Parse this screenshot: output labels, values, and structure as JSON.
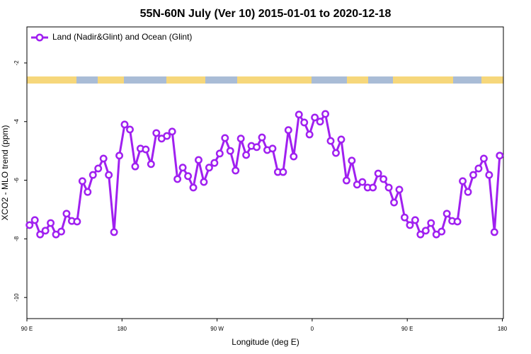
{
  "chart_data": {
    "type": "line",
    "title": "55N-60N July (Ver 10)   2015-01-01 to 2020-12-18",
    "xlabel": "Longitude (deg E)",
    "ylabel": "XCO2 - MLO trend (ppm)",
    "legend": "top-left",
    "xlim": [
      90,
      541
    ],
    "ylim": [
      -10.72,
      -0.77
    ],
    "xticks": [
      {
        "value": 90,
        "label": "90 E"
      },
      180,
      {
        "value": 270,
        "label": "90 W"
      },
      {
        "value": 360,
        "label": "0"
      },
      {
        "value": 450,
        "label": "90 E"
      },
      {
        "value": 540,
        "label": "180"
      }
    ],
    "yticks": [
      -2,
      -4,
      -6,
      -8,
      -10
    ],
    "x": [
      92.5,
      97.5,
      102.5,
      107.5,
      112.5,
      117.5,
      122.5,
      127.5,
      132.5,
      137.5,
      142.5,
      147.5,
      152.5,
      157.5,
      162.5,
      167.5,
      172.5,
      177.5,
      182.5,
      187.5,
      192.5,
      197.5,
      202.5,
      207.5,
      212.5,
      217.5,
      222.5,
      227.5,
      232.5,
      237.5,
      242.5,
      247.5,
      252.5,
      257.5,
      262.5,
      267.5,
      272.5,
      277.5,
      282.5,
      287.5,
      292.5,
      297.5,
      302.5,
      307.5,
      312.5,
      317.5,
      322.5,
      327.5,
      332.5,
      337.5,
      342.5,
      347.5,
      352.5,
      357.5,
      362.5,
      367.5,
      372.5,
      377.5,
      382.5,
      387.5,
      392.5,
      397.5,
      402.5,
      407.5,
      412.5,
      417.5,
      422.5,
      427.5,
      432.5,
      437.5,
      442.5,
      447.5,
      452.5,
      457.5,
      462.5,
      467.5,
      472.5,
      477.5,
      482.5,
      487.5,
      492.5,
      497.5,
      502.5,
      507.5,
      512.5,
      517.5,
      522.5,
      527.5,
      532.5,
      537.5
    ],
    "series": [
      {
        "name": "Land (Nadir&Glint) and Ocean (Glint)",
        "color": "#a020f0",
        "values": [
          -7.53,
          -7.36,
          -7.85,
          -7.72,
          -7.46,
          -7.85,
          -7.75,
          -7.14,
          -7.39,
          -7.41,
          -6.03,
          -6.4,
          -5.82,
          -5.6,
          -5.26,
          -5.82,
          -7.77,
          -5.16,
          -4.1,
          -4.27,
          -5.53,
          -4.92,
          -4.95,
          -5.45,
          -4.39,
          -4.58,
          -4.49,
          -4.34,
          -5.96,
          -5.57,
          -5.86,
          -6.25,
          -5.31,
          -6.06,
          -5.57,
          -5.41,
          -5.09,
          -4.56,
          -5.0,
          -5.67,
          -4.58,
          -5.14,
          -4.83,
          -4.87,
          -4.54,
          -4.97,
          -4.92,
          -5.72,
          -5.72,
          -4.29,
          -5.19,
          -3.76,
          -4.03,
          -4.44,
          -3.86,
          -4.0,
          -3.74,
          -4.66,
          -5.07,
          -4.61,
          -6.01,
          -5.33,
          -6.15,
          -6.06,
          -6.25,
          -6.25,
          -5.77,
          -5.96,
          -6.25,
          -6.76,
          -6.32,
          -7.27,
          -7.53,
          -7.36,
          -7.85,
          -7.72,
          -7.46,
          -7.85,
          -7.75,
          -7.14,
          -7.39,
          -7.41,
          -6.03,
          -6.4,
          -5.82,
          -5.6,
          -5.26,
          -5.82,
          -7.77,
          -5.16
        ]
      }
    ]
  }
}
